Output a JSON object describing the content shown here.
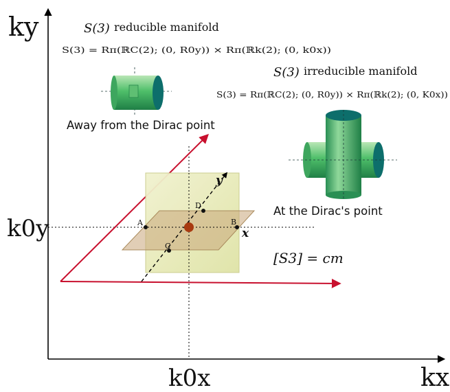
{
  "axes": {
    "y_label": "ky",
    "x_label": "kx",
    "k0y_label": "k0y",
    "k0x_label": "k0x"
  },
  "reducible": {
    "title": "reducible manifold",
    "symbol": "S(3)",
    "formula": "S(3) = Rπ(ℝC(2); (0, R0y)) × Rπ(ℝk(2); (0, k0x))",
    "caption": "Away from the Dirac point"
  },
  "irreducible": {
    "title": "irreducible manifold",
    "symbol": "S(3)",
    "formula": "S(3) = Rπ(ℝC(2); (0, R0y)) × Rπ(ℝk(2); (0, K0x))",
    "caption": "At the Dirac's point"
  },
  "points": {
    "a": "A",
    "b": "B",
    "c": "C",
    "d": "D",
    "x": "x",
    "y": "y"
  },
  "units": "[S3] = cm",
  "colors": {
    "arrow_red": "#c8102e",
    "cylinder_green": "#2e9d5a",
    "cylinder_teal": "#0d6e6b",
    "plane_yellow": "#e6e9b0",
    "plane_tan": "#c9a57a",
    "center_dot": "#a83a10"
  },
  "icons": {
    "cylinder_small": "cylinder-icon",
    "cross_cylinders": "cross-cylinders-icon"
  }
}
